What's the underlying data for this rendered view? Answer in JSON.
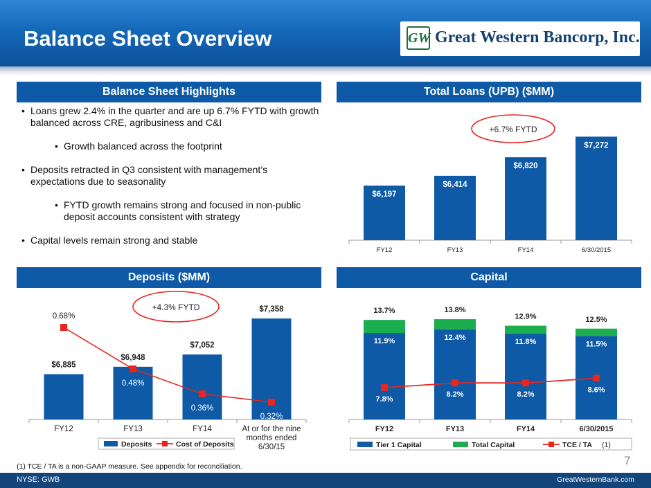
{
  "header": {
    "title": "Balance Sheet Overview",
    "logo_text": "Great Western Bancorp, Inc.",
    "logo_mark": "GW"
  },
  "sections": {
    "highlights": "Balance Sheet Highlights",
    "loans": "Total Loans (UPB) ($MM)",
    "deposits": "Deposits ($MM)",
    "capital": "Capital"
  },
  "bullets": [
    {
      "level": 1,
      "text": "Loans grew 2.4% in the quarter and are up 6.7% FYTD with growth balanced across CRE, agribusiness and C&I"
    },
    {
      "level": 2,
      "text": "Growth balanced across the footprint"
    },
    {
      "level": 1,
      "text": "Deposits retracted in Q3 consistent with management’s expectations due to seasonality"
    },
    {
      "level": 2,
      "text": "FYTD growth remains strong and focused in non-public deposit accounts consistent with strategy"
    },
    {
      "level": 1,
      "text": "Capital levels remain strong and stable"
    }
  ],
  "bullet_glyph": "•",
  "chart_data": [
    {
      "type": "bar",
      "categories": [
        "FY12",
        "FY13",
        "FY14",
        "6/30/2015"
      ],
      "series": [
        {
          "values": [
            6197,
            6414,
            6820,
            7272
          ]
        }
      ],
      "value_labels": [
        "$6,197",
        "$6,414",
        "$6,820",
        "$7,272"
      ],
      "annotation": "+6.7% FYTD",
      "color": "#0e5aa7"
    },
    {
      "type": "bar",
      "categories": [
        "FY12",
        "FY13",
        "FY14",
        "At or for the nine months ended 6/30/15"
      ],
      "series": [
        {
          "name": "Deposits",
          "values": [
            6885,
            6948,
            7052,
            7358
          ]
        },
        {
          "name": "Cost of Deposits",
          "values": [
            0.68,
            0.48,
            0.36,
            0.32
          ]
        }
      ],
      "value_labels": [
        "$6,885",
        "$6,948",
        "$7,052",
        "$7,358"
      ],
      "line_labels": [
        "0.68%",
        "0.48%",
        "0.36%",
        "0.32%"
      ],
      "annotation": "+4.3% FYTD",
      "colors": {
        "bar": "#0e5aa7",
        "line": "#e8251f"
      }
    },
    {
      "type": "bar",
      "categories": [
        "FY12",
        "FY13",
        "FY14",
        "6/30/2015"
      ],
      "series": [
        {
          "name": "Tier 1 Capital",
          "values": [
            11.9,
            12.4,
            11.8,
            11.5
          ]
        },
        {
          "name": "Total Capital",
          "values": [
            13.7,
            13.8,
            12.9,
            12.5
          ]
        },
        {
          "name": "TCE / TA",
          "values": [
            7.8,
            8.2,
            8.2,
            8.6
          ]
        }
      ],
      "tier1_labels": [
        "11.9%",
        "12.4%",
        "11.8%",
        "11.5%"
      ],
      "total_labels": [
        "13.7%",
        "13.8%",
        "12.9%",
        "12.5%"
      ],
      "tce_labels": [
        "7.8%",
        "8.2%",
        "8.2%",
        "8.6%"
      ],
      "legend_suffix": "(1)",
      "colors": {
        "tier1": "#0e5aa7",
        "total": "#1aae4f",
        "tce": "#e8251f"
      }
    }
  ],
  "footnote": "(1) TCE / TA is a non-GAAP measure.  See appendix for reconciliation.",
  "page_number": "7",
  "footer": {
    "left": "NYSE: GWB",
    "right": "GreatWesternBank.com"
  }
}
